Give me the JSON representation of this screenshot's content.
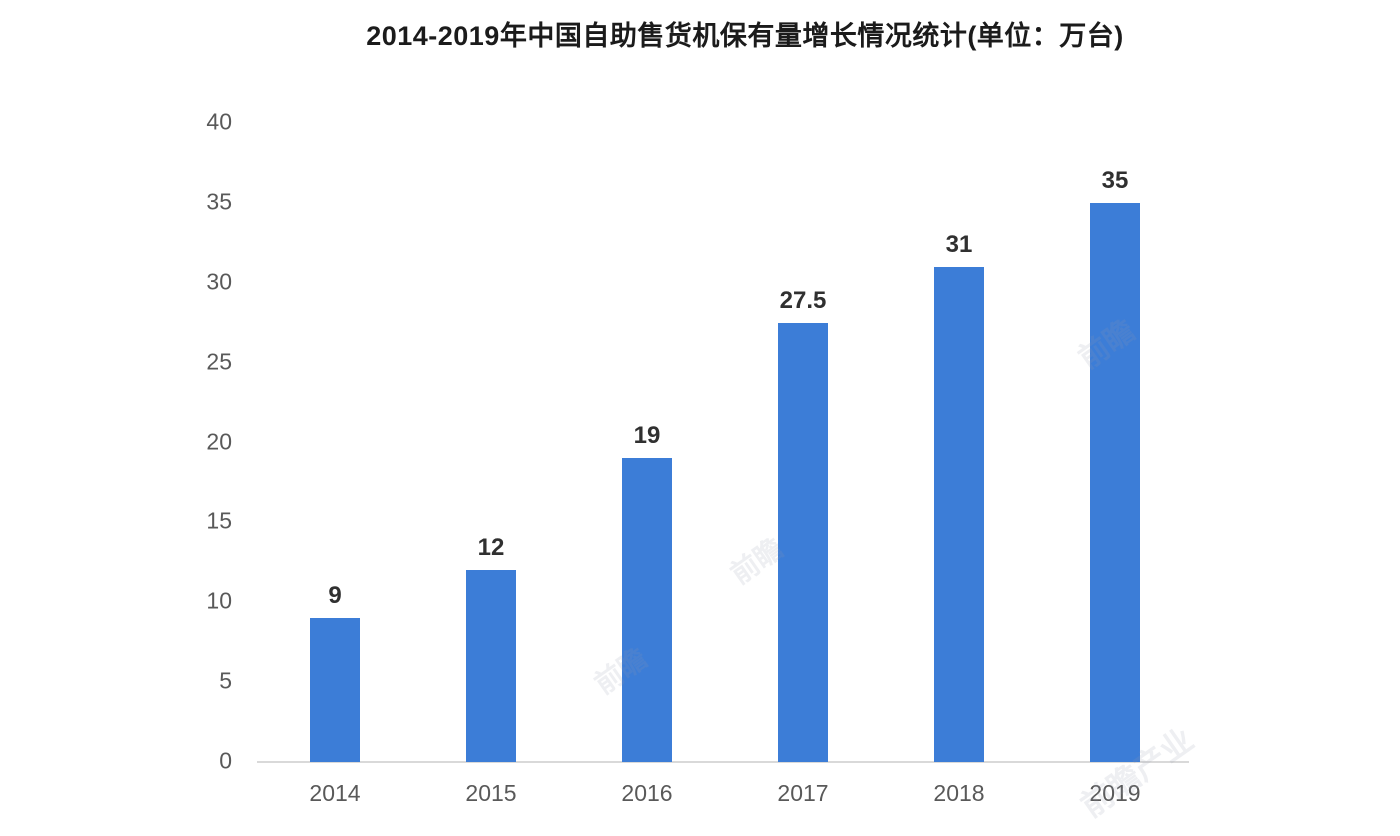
{
  "title": "2014-2019年中国自助售货机保有量增长情况统计(单位：万台)",
  "colors": {
    "bar": "#3c7dd7",
    "axis_line": "#d9d9d9",
    "tick_label": "#595959",
    "data_label": "#303030",
    "title": "#1b1b1b"
  },
  "chart_data": {
    "type": "bar",
    "title": "2014-2019年中国自助售货机保有量增长情况统计(单位：万台)",
    "categories": [
      "2014",
      "2015",
      "2016",
      "2017",
      "2018",
      "2019"
    ],
    "values": [
      9,
      12,
      19,
      27.5,
      31,
      35
    ],
    "data_labels": [
      "9",
      "12",
      "19",
      "27.5",
      "31",
      "35"
    ],
    "series_name": "自助售货机保有量",
    "unit": "万台",
    "xlabel": "",
    "ylabel": "",
    "ylim": [
      0,
      40
    ],
    "yticks": [
      0,
      5,
      10,
      15,
      20,
      25,
      30,
      35,
      40
    ],
    "ytick_labels": [
      "0",
      "5",
      "10",
      "15",
      "20",
      "25",
      "30",
      "35",
      "40"
    ],
    "grid": false,
    "legend": false,
    "legend_position": "none",
    "bar_color": "#3c7dd7"
  },
  "watermarks": [
    {
      "text": "前瞻"
    },
    {
      "text": "前瞻"
    },
    {
      "text": "前瞻"
    },
    {
      "text": "前瞻产业"
    }
  ]
}
